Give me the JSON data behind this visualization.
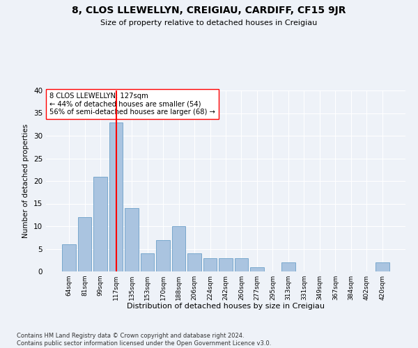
{
  "title": "8, CLOS LLEWELLYN, CREIGIAU, CARDIFF, CF15 9JR",
  "subtitle": "Size of property relative to detached houses in Creigiau",
  "xlabel": "Distribution of detached houses by size in Creigiau",
  "ylabel": "Number of detached properties",
  "categories": [
    "64sqm",
    "81sqm",
    "99sqm",
    "117sqm",
    "135sqm",
    "153sqm",
    "170sqm",
    "188sqm",
    "206sqm",
    "224sqm",
    "242sqm",
    "260sqm",
    "277sqm",
    "295sqm",
    "313sqm",
    "331sqm",
    "349sqm",
    "367sqm",
    "384sqm",
    "402sqm",
    "420sqm"
  ],
  "values": [
    6,
    12,
    21,
    33,
    14,
    4,
    7,
    10,
    4,
    3,
    3,
    3,
    1,
    0,
    2,
    0,
    0,
    0,
    0,
    0,
    2
  ],
  "bar_color": "#aac4e0",
  "bar_edge_color": "#6b9fc8",
  "red_line_x": 3,
  "annotation_text": "8 CLOS LLEWELLYN: 127sqm\n← 44% of detached houses are smaller (54)\n56% of semi-detached houses are larger (68) →",
  "ylim": [
    0,
    40
  ],
  "yticks": [
    0,
    5,
    10,
    15,
    20,
    25,
    30,
    35,
    40
  ],
  "background_color": "#eef2f8",
  "grid_color": "#ffffff",
  "footnote": "Contains HM Land Registry data © Crown copyright and database right 2024.\nContains public sector information licensed under the Open Government Licence v3.0."
}
